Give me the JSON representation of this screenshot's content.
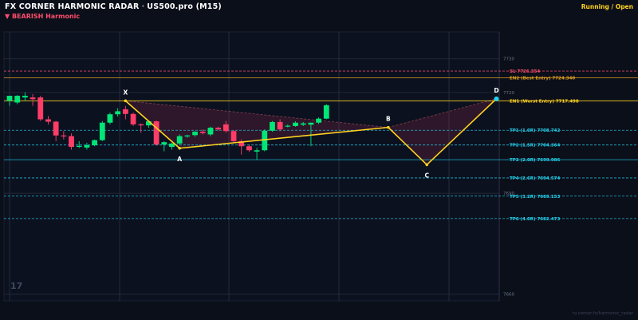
{
  "header": {
    "title": "FX CORNER HARMONIC RADAR",
    "separator": "·",
    "symbol": "US500.pro (M15)",
    "subtitle": "▼ BEARISH  Harmonic",
    "status": "Running / Open"
  },
  "watermark": "17",
  "footer": "tv.corner.fx/harmonic_radar",
  "colors": {
    "background": "#0b0f1a",
    "bull": "#00e676",
    "bear": "#ff3d68",
    "pattern": "#ffd21f",
    "sl": "#ff4d6d",
    "entry2": "#e0a020",
    "entry1": "#ffd21f",
    "tp": "#22d3ee"
  },
  "chart_data": {
    "type": "candlestick",
    "ylim": [
      7658,
      7738
    ],
    "y_ticks": [
      7660,
      7690,
      7720,
      7730
    ],
    "y_tick_labels": [
      "7660",
      "7690",
      "7720",
      "7730"
    ],
    "candles": [
      {
        "o": 7717.5,
        "h": 7719.0,
        "l": 7716.0,
        "c": 7719.0
      },
      {
        "o": 7717.0,
        "h": 7719.2,
        "l": 7716.5,
        "c": 7719.0
      },
      {
        "o": 7718.5,
        "h": 7720.0,
        "l": 7717.5,
        "c": 7719.0
      },
      {
        "o": 7718.5,
        "h": 7719.5,
        "l": 7716.0,
        "c": 7718.0
      },
      {
        "o": 7718.5,
        "h": 7719.0,
        "l": 7711.5,
        "c": 7712.0
      },
      {
        "o": 7712.0,
        "h": 7713.0,
        "l": 7710.5,
        "c": 7711.3
      },
      {
        "o": 7711.3,
        "h": 7711.5,
        "l": 7705.5,
        "c": 7707.2
      },
      {
        "o": 7707.2,
        "h": 7708.5,
        "l": 7706.0,
        "c": 7707.0
      },
      {
        "o": 7707.0,
        "h": 7707.8,
        "l": 7703.0,
        "c": 7703.8
      },
      {
        "o": 7703.8,
        "h": 7705.5,
        "l": 7703.5,
        "c": 7704.1
      },
      {
        "o": 7703.6,
        "h": 7705.0,
        "l": 7703.0,
        "c": 7704.3
      },
      {
        "o": 7704.3,
        "h": 7706.0,
        "l": 7704.0,
        "c": 7705.8
      },
      {
        "o": 7705.8,
        "h": 7711.5,
        "l": 7705.5,
        "c": 7711.0
      },
      {
        "o": 7711.0,
        "h": 7714.0,
        "l": 7710.5,
        "c": 7713.5
      },
      {
        "o": 7713.5,
        "h": 7715.3,
        "l": 7712.8,
        "c": 7714.4
      },
      {
        "o": 7715.0,
        "h": 7716.0,
        "l": 7712.0,
        "c": 7713.6
      },
      {
        "o": 7713.6,
        "h": 7714.0,
        "l": 7710.0,
        "c": 7710.5
      },
      {
        "o": 7710.5,
        "h": 7710.8,
        "l": 7708.0,
        "c": 7710.2
      },
      {
        "o": 7710.2,
        "h": 7711.5,
        "l": 7709.5,
        "c": 7711.4
      },
      {
        "o": 7711.4,
        "h": 7711.6,
        "l": 7704.2,
        "c": 7704.5
      },
      {
        "o": 7704.5,
        "h": 7705.5,
        "l": 7702.5,
        "c": 7705.2
      },
      {
        "o": 7703.8,
        "h": 7705.0,
        "l": 7703.0,
        "c": 7704.8
      },
      {
        "o": 7704.8,
        "h": 7707.5,
        "l": 7704.5,
        "c": 7707.0
      },
      {
        "o": 7707.0,
        "h": 7707.4,
        "l": 7706.5,
        "c": 7707.2
      },
      {
        "o": 7707.3,
        "h": 7708.5,
        "l": 7706.8,
        "c": 7708.3
      },
      {
        "o": 7708.3,
        "h": 7709.0,
        "l": 7707.5,
        "c": 7707.9
      },
      {
        "o": 7707.5,
        "h": 7709.8,
        "l": 7707.0,
        "c": 7709.5
      },
      {
        "o": 7709.5,
        "h": 7709.8,
        "l": 7708.7,
        "c": 7709.0
      },
      {
        "o": 7710.5,
        "h": 7711.5,
        "l": 7708.0,
        "c": 7708.5
      },
      {
        "o": 7708.5,
        "h": 7708.8,
        "l": 7705.0,
        "c": 7705.5
      },
      {
        "o": 7705.5,
        "h": 7706.0,
        "l": 7701.5,
        "c": 7704.0
      },
      {
        "o": 7704.0,
        "h": 7704.5,
        "l": 7702.3,
        "c": 7702.8
      },
      {
        "o": 7702.4,
        "h": 7703.5,
        "l": 7700.0,
        "c": 7702.8
      },
      {
        "o": 7702.8,
        "h": 7709.0,
        "l": 7702.5,
        "c": 7708.6
      },
      {
        "o": 7708.6,
        "h": 7711.5,
        "l": 7708.3,
        "c": 7711.2
      },
      {
        "o": 7711.2,
        "h": 7712.0,
        "l": 7708.5,
        "c": 7709.0
      },
      {
        "o": 7710.0,
        "h": 7710.5,
        "l": 7709.6,
        "c": 7710.1
      },
      {
        "o": 7710.0,
        "h": 7711.4,
        "l": 7709.8,
        "c": 7711.0
      },
      {
        "o": 7710.4,
        "h": 7711.2,
        "l": 7710.0,
        "c": 7710.8
      },
      {
        "o": 7710.4,
        "h": 7711.0,
        "l": 7704.0,
        "c": 7711.0
      },
      {
        "o": 7711.0,
        "h": 7712.6,
        "l": 7710.6,
        "c": 7712.2
      },
      {
        "o": 7712.2,
        "h": 7716.5,
        "l": 7712.0,
        "c": 7716.2
      }
    ],
    "pattern": {
      "points": [
        {
          "label": "X",
          "i": 15,
          "price": 7717.5
        },
        {
          "label": "A",
          "i": 22,
          "price": 7703.4
        },
        {
          "label": "B",
          "i": 49,
          "price": 7709.6
        },
        {
          "label": "C",
          "i": 54,
          "price": 7698.5
        },
        {
          "label": "D",
          "i": 63,
          "price": 7718.1
        }
      ]
    },
    "levels": [
      {
        "key": "sl",
        "label": "SL 7726.354",
        "price": 7726.354,
        "style": "dash"
      },
      {
        "key": "entry2",
        "label": "EN2 (Best Entry) 7724.340",
        "price": 7724.34,
        "style": "solid"
      },
      {
        "key": "entry1",
        "label": "EN1 (Worst Entry) 7717.498",
        "price": 7717.498,
        "style": "solid"
      },
      {
        "key": "tp",
        "label": "TP1 (1.0R) 7708.742",
        "price": 7708.742,
        "style": "dash"
      },
      {
        "key": "tp",
        "label": "TP2 (1.5R) 7704.364",
        "price": 7704.364,
        "style": "dash"
      },
      {
        "key": "tp",
        "label": "TP3 (2.0R) 7699.986",
        "price": 7699.986,
        "style": "solid"
      },
      {
        "key": "tp",
        "label": "TP4 (2.6R) 7694.574",
        "price": 7694.574,
        "style": "dash"
      },
      {
        "key": "tp",
        "label": "TP5 (3.2R) 7689.153",
        "price": 7689.153,
        "style": "dash"
      },
      {
        "key": "tp",
        "label": "TP6 (4.0R) 7682.473",
        "price": 7682.473,
        "style": "dash"
      }
    ]
  }
}
